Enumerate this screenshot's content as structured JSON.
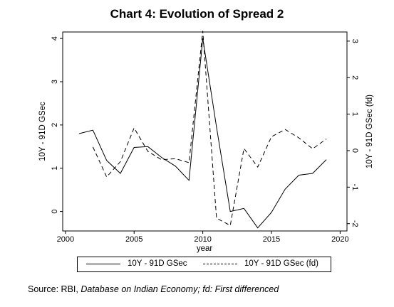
{
  "chart_data": {
    "type": "line",
    "title": "Chart 4: Evolution of Spread 2",
    "xlabel": "year",
    "ylabel": "10Y - 91D GSec",
    "y2label": "10Y - 91D GSec (fd)",
    "xlim": [
      1999.8,
      2020.5
    ],
    "ylim": [
      -0.45,
      4.15
    ],
    "y2lim": [
      -2.2,
      3.25
    ],
    "x_ticks": [
      2000,
      2005,
      2010,
      2015,
      2020
    ],
    "y_ticks": [
      0,
      1,
      2,
      3,
      4
    ],
    "y2_ticks": [
      -2,
      -1,
      0,
      1,
      2,
      3
    ],
    "grid": false,
    "legend_position": "bottom",
    "series": [
      {
        "name": "10Y - 91D GSec",
        "axis": "left",
        "style": "solid",
        "x": [
          2001,
          2002,
          2003,
          2004,
          2005,
          2006,
          2007,
          2008,
          2009,
          2010,
          2011,
          2012,
          2013,
          2014,
          2015,
          2016,
          2017,
          2018,
          2019
        ],
        "y": [
          1.8,
          1.88,
          1.18,
          0.88,
          1.48,
          1.5,
          1.25,
          1.05,
          0.72,
          4.0,
          1.95,
          0.0,
          0.07,
          -0.38,
          -0.02,
          0.52,
          0.84,
          0.88,
          1.2
        ]
      },
      {
        "name": "10Y - 91D GSec (fd)",
        "axis": "right",
        "style": "dashed",
        "x": [
          2002,
          2003,
          2004,
          2005,
          2006,
          2007,
          2008,
          2009,
          2010,
          2011,
          2012,
          2013,
          2014,
          2015,
          2016,
          2017,
          2018,
          2019
        ],
        "y": [
          0.1,
          -0.72,
          -0.3,
          0.62,
          -0.02,
          -0.25,
          -0.22,
          -0.33,
          3.28,
          -1.85,
          -2.05,
          0.06,
          -0.45,
          0.38,
          0.58,
          0.35,
          0.05,
          0.32
        ]
      }
    ]
  },
  "source_prefix": "Source: RBI, ",
  "source_italic": "Database on Indian Economy; fd: First differenced"
}
